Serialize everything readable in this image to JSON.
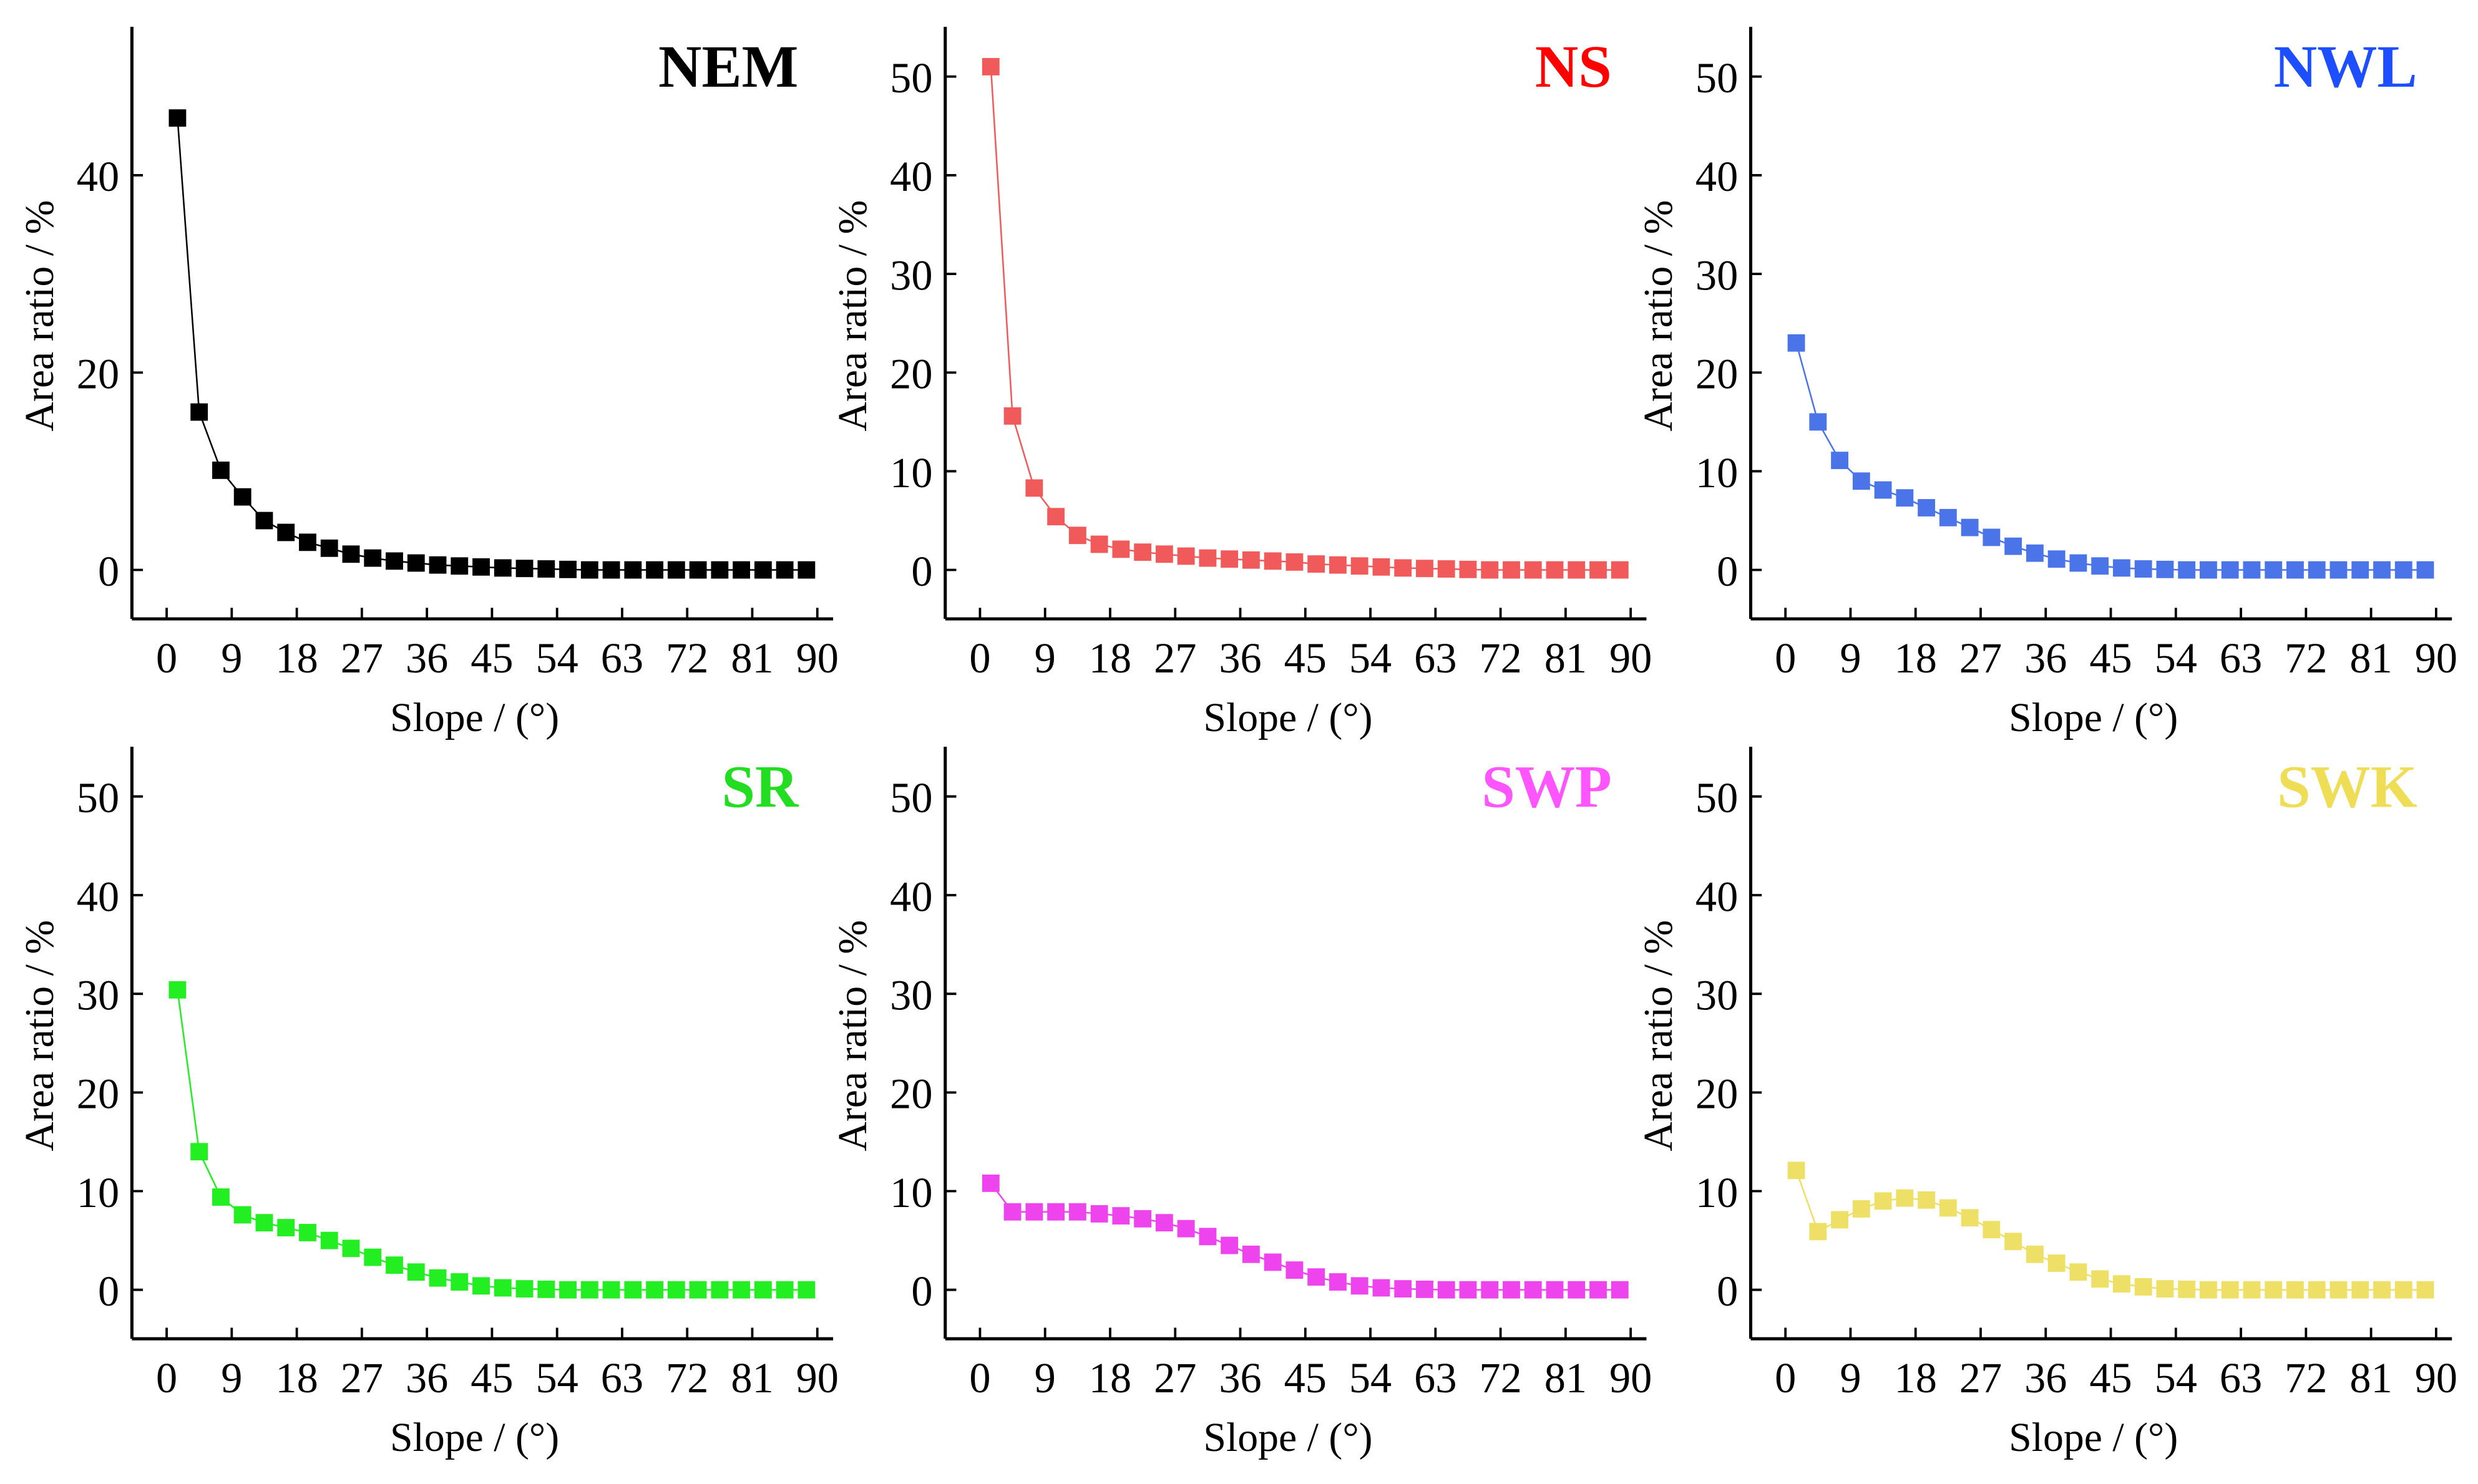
{
  "chart_data": [
    {
      "type": "line",
      "title": "NEM",
      "title_color": "#000000",
      "series_color": "#000000",
      "xlabel": "Slope / (°)",
      "ylabel": "Area ratio / %",
      "xlim": [
        -4,
        95
      ],
      "ylim": [
        -5,
        55
      ],
      "xticks": [
        0,
        9,
        18,
        27,
        36,
        45,
        54,
        63,
        72,
        81,
        90
      ],
      "yticks": [
        0,
        20,
        40
      ],
      "x": [
        1.5,
        4.5,
        7.5,
        10.5,
        13.5,
        16.5,
        19.5,
        22.5,
        25.5,
        28.5,
        31.5,
        34.5,
        37.5,
        40.5,
        43.5,
        46.5,
        49.5,
        52.5,
        55.5,
        58.5,
        61.5,
        64.5,
        67.5,
        70.5,
        73.5,
        76.5,
        79.5,
        82.5,
        85.5,
        88.5
      ],
      "y": [
        45.8,
        16,
        10.1,
        7.4,
        5,
        3.8,
        2.8,
        2.2,
        1.6,
        1.2,
        0.9,
        0.7,
        0.5,
        0.4,
        0.3,
        0.2,
        0.15,
        0.1,
        0.05,
        0,
        0,
        0,
        0,
        0,
        0,
        0,
        0,
        0,
        0,
        0
      ]
    },
    {
      "type": "line",
      "title": "NS",
      "title_color": "#ff0000",
      "series_color": "#f05a5a",
      "xlabel": "Slope / (°)",
      "ylabel": "Area ratio / %",
      "xlim": [
        -4,
        95
      ],
      "ylim": [
        -5,
        55
      ],
      "xticks": [
        0,
        9,
        18,
        27,
        36,
        45,
        54,
        63,
        72,
        81,
        90
      ],
      "yticks": [
        0,
        10,
        20,
        30,
        40,
        50
      ],
      "x": [
        1.5,
        4.5,
        7.5,
        10.5,
        13.5,
        16.5,
        19.5,
        22.5,
        25.5,
        28.5,
        31.5,
        34.5,
        37.5,
        40.5,
        43.5,
        46.5,
        49.5,
        52.5,
        55.5,
        58.5,
        61.5,
        64.5,
        67.5,
        70.5,
        73.5,
        76.5,
        79.5,
        82.5,
        85.5,
        88.5
      ],
      "y": [
        51,
        15.6,
        8.3,
        5.4,
        3.5,
        2.6,
        2.1,
        1.8,
        1.6,
        1.4,
        1.2,
        1.1,
        1.0,
        0.9,
        0.8,
        0.6,
        0.5,
        0.4,
        0.3,
        0.2,
        0.15,
        0.1,
        0.05,
        0,
        0,
        0,
        0,
        0,
        0,
        0
      ]
    },
    {
      "type": "line",
      "title": "NWL",
      "title_color": "#1e4fff",
      "series_color": "#4a74e8",
      "xlabel": "Slope / (°)",
      "ylabel": "Area ratio / %",
      "xlim": [
        -4,
        95
      ],
      "ylim": [
        -5,
        55
      ],
      "xticks": [
        0,
        9,
        18,
        27,
        36,
        45,
        54,
        63,
        72,
        81,
        90
      ],
      "yticks": [
        0,
        10,
        20,
        30,
        40,
        50
      ],
      "x": [
        1.5,
        4.5,
        7.5,
        10.5,
        13.5,
        16.5,
        19.5,
        22.5,
        25.5,
        28.5,
        31.5,
        34.5,
        37.5,
        40.5,
        43.5,
        46.5,
        49.5,
        52.5,
        55.5,
        58.5,
        61.5,
        64.5,
        67.5,
        70.5,
        73.5,
        76.5,
        79.5,
        82.5,
        85.5,
        88.5
      ],
      "y": [
        23,
        15,
        11.1,
        9,
        8.1,
        7.3,
        6.3,
        5.3,
        4.3,
        3.3,
        2.4,
        1.7,
        1.1,
        0.7,
        0.4,
        0.2,
        0.1,
        0.05,
        0,
        0,
        0,
        0,
        0,
        0,
        0,
        0,
        0,
        0,
        0,
        0
      ]
    },
    {
      "type": "line",
      "title": "SR",
      "title_color": "#22dd22",
      "series_color": "#22ee22",
      "xlabel": "Slope / (°)",
      "ylabel": "Area ratio / %",
      "xlim": [
        -4,
        95
      ],
      "ylim": [
        -5,
        55
      ],
      "xticks": [
        0,
        9,
        18,
        27,
        36,
        45,
        54,
        63,
        72,
        81,
        90
      ],
      "yticks": [
        0,
        10,
        20,
        30,
        40,
        50
      ],
      "x": [
        1.5,
        4.5,
        7.5,
        10.5,
        13.5,
        16.5,
        19.5,
        22.5,
        25.5,
        28.5,
        31.5,
        34.5,
        37.5,
        40.5,
        43.5,
        46.5,
        49.5,
        52.5,
        55.5,
        58.5,
        61.5,
        64.5,
        67.5,
        70.5,
        73.5,
        76.5,
        79.5,
        82.5,
        85.5,
        88.5
      ],
      "y": [
        30.4,
        14,
        9.4,
        7.6,
        6.8,
        6.3,
        5.8,
        5,
        4.2,
        3.3,
        2.5,
        1.8,
        1.2,
        0.8,
        0.4,
        0.2,
        0.1,
        0.05,
        0,
        0,
        0,
        0,
        0,
        0,
        0,
        0,
        0,
        0,
        0,
        0
      ]
    },
    {
      "type": "line",
      "title": "SWP",
      "title_color": "#ff55ff",
      "series_color": "#ee44ee",
      "xlabel": "Slope / (°)",
      "ylabel": "Area ratio / %",
      "xlim": [
        -4,
        95
      ],
      "ylim": [
        -5,
        55
      ],
      "xticks": [
        0,
        9,
        18,
        27,
        36,
        45,
        54,
        63,
        72,
        81,
        90
      ],
      "yticks": [
        0,
        10,
        20,
        30,
        40,
        50
      ],
      "x": [
        1.5,
        4.5,
        7.5,
        10.5,
        13.5,
        16.5,
        19.5,
        22.5,
        25.5,
        28.5,
        31.5,
        34.5,
        37.5,
        40.5,
        43.5,
        46.5,
        49.5,
        52.5,
        55.5,
        58.5,
        61.5,
        64.5,
        67.5,
        70.5,
        73.5,
        76.5,
        79.5,
        82.5,
        85.5,
        88.5
      ],
      "y": [
        10.8,
        7.9,
        7.9,
        7.9,
        7.9,
        7.7,
        7.5,
        7.2,
        6.8,
        6.2,
        5.4,
        4.5,
        3.6,
        2.8,
        2.0,
        1.3,
        0.8,
        0.4,
        0.2,
        0.1,
        0.05,
        0,
        0,
        0,
        0,
        0,
        0,
        0,
        0,
        0
      ]
    },
    {
      "type": "line",
      "title": "SWK",
      "title_color": "#eedd55",
      "series_color": "#eee066",
      "xlabel": "Slope / (°)",
      "ylabel": "Area ratio / %",
      "xlim": [
        -4,
        95
      ],
      "ylim": [
        -5,
        55
      ],
      "xticks": [
        0,
        9,
        18,
        27,
        36,
        45,
        54,
        63,
        72,
        81,
        90
      ],
      "yticks": [
        0,
        10,
        20,
        30,
        40,
        50
      ],
      "x": [
        1.5,
        4.5,
        7.5,
        10.5,
        13.5,
        16.5,
        19.5,
        22.5,
        25.5,
        28.5,
        31.5,
        34.5,
        37.5,
        40.5,
        43.5,
        46.5,
        49.5,
        52.5,
        55.5,
        58.5,
        61.5,
        64.5,
        67.5,
        70.5,
        73.5,
        76.5,
        79.5,
        82.5,
        85.5,
        88.5
      ],
      "y": [
        12.1,
        5.9,
        7.1,
        8.2,
        9.0,
        9.3,
        9.1,
        8.3,
        7.3,
        6.1,
        4.9,
        3.6,
        2.7,
        1.8,
        1.1,
        0.6,
        0.3,
        0.1,
        0.05,
        0,
        0,
        0,
        0,
        0,
        0,
        0,
        0,
        0,
        0,
        0
      ]
    }
  ]
}
